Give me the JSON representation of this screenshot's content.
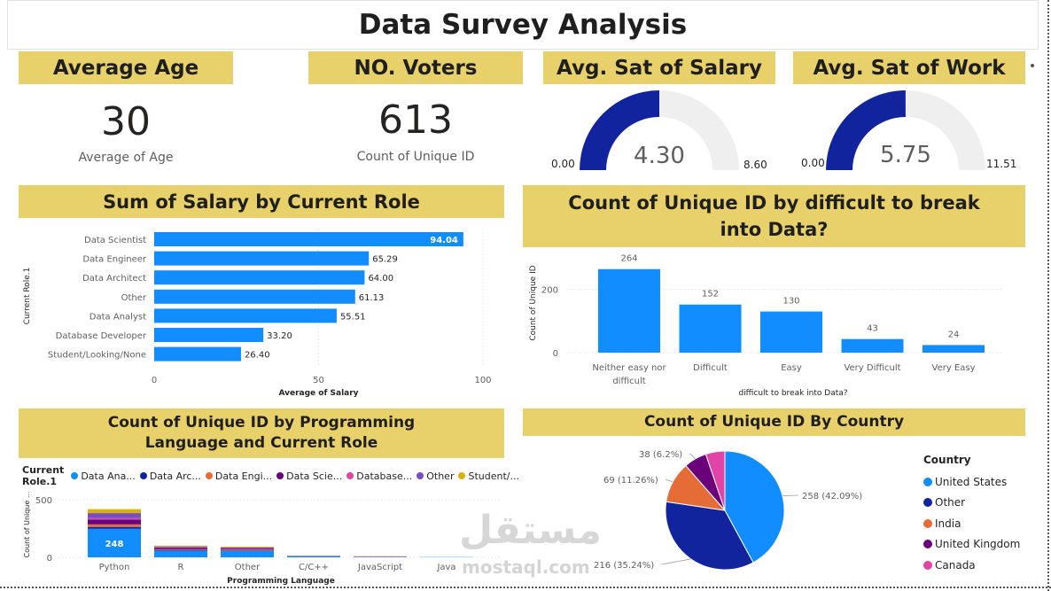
{
  "header": {
    "title": "Data Survey Analysis"
  },
  "kpis": {
    "average_age": {
      "label": "Average Age",
      "value": "30",
      "sub": "Average of Age"
    },
    "voters": {
      "label": "NO. Voters",
      "value": "613",
      "sub": "Count of Unique ID"
    },
    "sat_salary": {
      "label": "Avg. Sat of Salary",
      "value": "4.30",
      "value_num": 4.3,
      "min": "0.00",
      "max": "8.60",
      "max_num": 8.6
    },
    "sat_work": {
      "label": "Avg. Sat of Work",
      "value": "5.75",
      "value_num": 5.75,
      "min": "0.00",
      "max": "11.51",
      "max_num": 11.51
    }
  },
  "colors": {
    "accent_yellow": "#e8d06a",
    "bar_blue": "#118dff",
    "gauge_navy": "#12239e",
    "gauge_track": "#efefef"
  },
  "watermark": {
    "arabic": "مستقل",
    "latin": "mostaql.com"
  },
  "chart_data": [
    {
      "type": "bar",
      "orientation": "horizontal",
      "title": "Sum of Salary by Current Role",
      "ylabel": "Current Role.1",
      "xlabel": "Average of Salary",
      "categories": [
        "Data Scientist",
        "Data Engineer",
        "Data Architect",
        "Other",
        "Data Analyst",
        "Database Developer",
        "Student/Looking/None"
      ],
      "values": [
        94.04,
        65.29,
        64.0,
        61.13,
        55.51,
        33.2,
        26.4
      ],
      "data_labels": [
        "94.04",
        "65.29",
        "64.00",
        "61.13",
        "55.51",
        "33.20",
        "26.40"
      ],
      "xticks": [
        "0",
        "50",
        "100"
      ],
      "xlim": [
        0,
        100
      ]
    },
    {
      "type": "bar",
      "title": "Count of Unique ID by difficult to break into Data?",
      "ylabel": "Count of Unique ID",
      "xlabel": "difficult to break into Data?",
      "categories": [
        "Neither easy nor difficult",
        "Difficult",
        "Easy",
        "Very Difficult",
        "Very Easy"
      ],
      "values": [
        264,
        152,
        130,
        43,
        24
      ],
      "yticks": [
        "0",
        "200"
      ],
      "ylim": [
        0,
        280
      ]
    },
    {
      "type": "bar",
      "stacked": true,
      "title": "Count of Unique ID by Programming Language and Current Role",
      "ylabel": "Count of Unique ...",
      "xlabel": "Programming Language",
      "legend_title": "Current Role.1",
      "legend_labels": [
        "Data Ana...",
        "Data Arc...",
        "Data Engi...",
        "Data Scie...",
        "Database...",
        "Other",
        "Student/..."
      ],
      "categories": [
        "Python",
        "R",
        "Other",
        "C/C++",
        "JavaScript",
        "Java"
      ],
      "series": [
        {
          "name": "Data Analyst",
          "color": "#118dff",
          "values": [
            248,
            58,
            55,
            8,
            3,
            2
          ]
        },
        {
          "name": "Data Architect",
          "color": "#12239e",
          "values": [
            16,
            4,
            5,
            1,
            1,
            0
          ]
        },
        {
          "name": "Data Engineer",
          "color": "#e66c37",
          "values": [
            22,
            6,
            7,
            1,
            2,
            0
          ]
        },
        {
          "name": "Data Scientist",
          "color": "#6b007b",
          "values": [
            42,
            14,
            6,
            1,
            0,
            0
          ]
        },
        {
          "name": "Database Developer",
          "color": "#e044a7",
          "values": [
            12,
            4,
            4,
            1,
            2,
            0
          ]
        },
        {
          "name": "Other",
          "color": "#744ec2",
          "values": [
            44,
            8,
            9,
            2,
            1,
            0
          ]
        },
        {
          "name": "Student/Looking/None",
          "color": "#d9b300",
          "values": [
            34,
            8,
            7,
            1,
            1,
            0
          ]
        }
      ],
      "data_labels": [
        "248"
      ],
      "yticks": [
        "0",
        "500"
      ],
      "ylim": [
        0,
        500
      ]
    },
    {
      "type": "pie",
      "title": "Count of Unique ID By Country",
      "legend_title": "Country",
      "labels": [
        "United States",
        "Other",
        "India",
        "United Kingdom",
        "Canada"
      ],
      "values": [
        258,
        216,
        69,
        38,
        32
      ],
      "data_labels": [
        "258 (42.09%)",
        "216 (35.24%)",
        "69 (11.26%)",
        "38 (6.2%)",
        ""
      ],
      "colors": [
        "#118dff",
        "#12239e",
        "#e66c37",
        "#6b007b",
        "#e044a7"
      ]
    }
  ]
}
